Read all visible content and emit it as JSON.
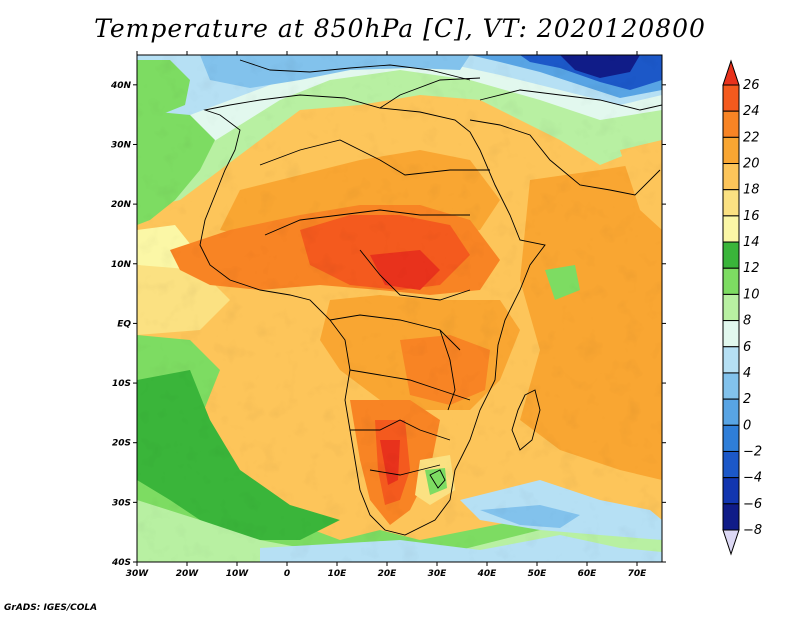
{
  "title": "Temperature at 850hPa [C], VT: 2020120800",
  "credit": "GrADS: IGES/COLA",
  "map": {
    "lat_range": [
      -40,
      45
    ],
    "lon_range": [
      -30,
      75
    ],
    "lat_ticks": [
      "40N",
      "30N",
      "20N",
      "10N",
      "EQ",
      "10S",
      "20S",
      "30S",
      "40S"
    ],
    "lat_tick_values": [
      40,
      30,
      20,
      10,
      0,
      -10,
      -20,
      -30,
      -40
    ],
    "lon_ticks": [
      "30W",
      "20W",
      "10W",
      "0",
      "10E",
      "20E",
      "30E",
      "40E",
      "50E",
      "60E",
      "70E"
    ],
    "lon_tick_values": [
      -30,
      -20,
      -10,
      0,
      10,
      20,
      30,
      40,
      50,
      60,
      70
    ]
  },
  "colorbar": {
    "labels": [
      "26",
      "24",
      "22",
      "20",
      "18",
      "16",
      "14",
      "12",
      "10",
      "8",
      "6",
      "4",
      "2",
      "0",
      "−2",
      "−4",
      "−6",
      "−8"
    ],
    "colors": [
      "#e8321c",
      "#f45a1e",
      "#f88424",
      "#f9a632",
      "#fdc55a",
      "#fbe182",
      "#fbf7a6",
      "#3ab53a",
      "#7ddc62",
      "#b8f0a2",
      "#e2f8ee",
      "#b6e0f4",
      "#82c2ec",
      "#58a4e4",
      "#2f7ed8",
      "#1c58c8",
      "#1236b0",
      "#101c88",
      "#dcd8f4"
    ]
  }
}
